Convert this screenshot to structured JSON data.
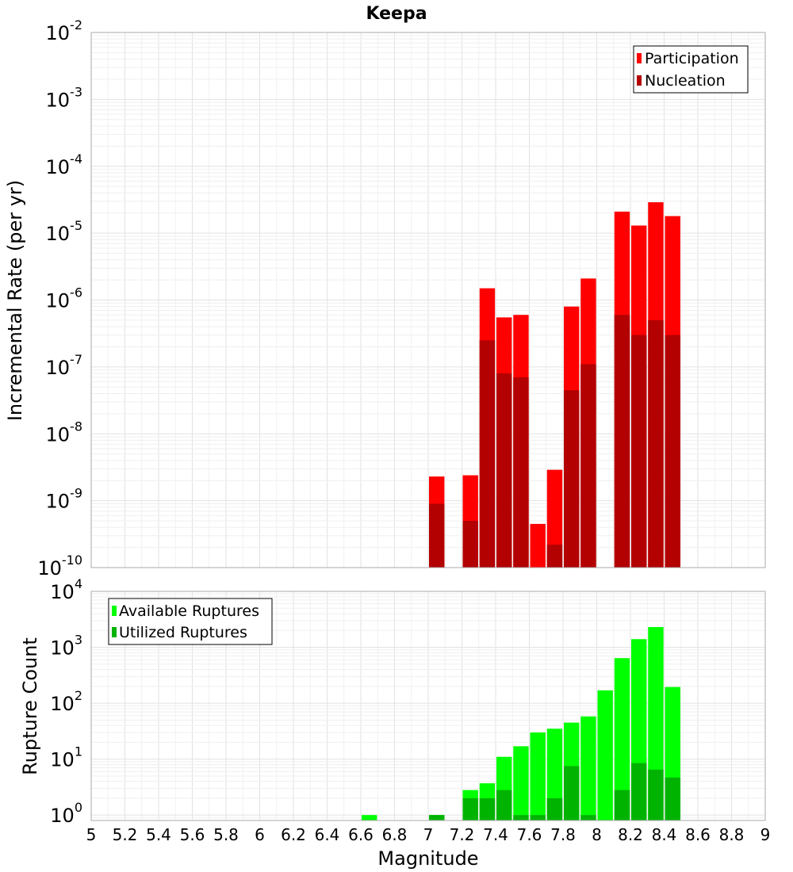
{
  "chart_data": [
    {
      "type": "bar",
      "title": "Keepa",
      "xlabel": "",
      "ylabel": "Incremental Rate (per yr)",
      "yscale": "log",
      "ylim": [
        1e-10,
        0.01
      ],
      "xlim": [
        5,
        9
      ],
      "grid": true,
      "legend_position": "top-right",
      "y_tick_labels": [
        {
          "base": "10",
          "exp": "-10"
        },
        {
          "base": "10",
          "exp": "-9"
        },
        {
          "base": "10",
          "exp": "-8"
        },
        {
          "base": "10",
          "exp": "-7"
        },
        {
          "base": "10",
          "exp": "-6"
        },
        {
          "base": "10",
          "exp": "-5"
        },
        {
          "base": "10",
          "exp": "-4"
        },
        {
          "base": "10",
          "exp": "-3"
        },
        {
          "base": "10",
          "exp": "-2"
        }
      ],
      "series": [
        {
          "name": "Participation",
          "color": "#ff0000",
          "x": [
            7.05,
            7.25,
            7.35,
            7.45,
            7.55,
            7.65,
            7.75,
            7.85,
            7.95,
            8.15,
            8.25,
            8.35,
            8.45
          ],
          "values": [
            2.3e-09,
            2.4e-09,
            1.5e-06,
            5.5e-07,
            6e-07,
            4.5e-10,
            2.9e-09,
            8e-07,
            2.1e-06,
            2.1e-05,
            1.3e-05,
            2.9e-05,
            1.8e-05
          ]
        },
        {
          "name": "Nucleation",
          "color": "#b30000",
          "x": [
            7.05,
            7.25,
            7.35,
            7.45,
            7.55,
            7.65,
            7.75,
            7.85,
            7.95,
            8.15,
            8.25,
            8.35,
            8.45
          ],
          "values": [
            9e-10,
            5e-10,
            2.5e-07,
            8e-08,
            7e-08,
            null,
            2.2e-10,
            4.5e-08,
            1.1e-07,
            6e-07,
            3e-07,
            5e-07,
            3e-07
          ]
        }
      ]
    },
    {
      "type": "bar",
      "title": "",
      "xlabel": "Magnitude",
      "ylabel": "Rupture Count",
      "yscale": "log",
      "ylim": [
        0.8,
        10000
      ],
      "xlim": [
        5,
        9
      ],
      "grid": true,
      "legend_position": "top-left",
      "x_tick_labels": [
        "5",
        "5.2",
        "5.4",
        "5.6",
        "5.8",
        "6",
        "6.2",
        "6.4",
        "6.6",
        "6.8",
        "7",
        "7.2",
        "7.4",
        "7.6",
        "7.8",
        "8",
        "8.2",
        "8.4",
        "8.6",
        "8.8",
        "9"
      ],
      "y_tick_labels": [
        {
          "base": "10",
          "exp": "0"
        },
        {
          "base": "10",
          "exp": "1"
        },
        {
          "base": "10",
          "exp": "2"
        },
        {
          "base": "10",
          "exp": "3"
        },
        {
          "base": "10",
          "exp": "4"
        }
      ],
      "series": [
        {
          "name": "Available Ruptures",
          "color": "#00ff00",
          "x": [
            6.65,
            7.05,
            7.25,
            7.35,
            7.45,
            7.55,
            7.65,
            7.75,
            7.85,
            7.95,
            8.05,
            8.15,
            8.25,
            8.35,
            8.45
          ],
          "values": [
            1,
            1,
            2.8,
            3.7,
            11,
            17,
            30,
            35,
            45,
            58,
            170,
            640,
            1400,
            2300,
            195
          ]
        },
        {
          "name": "Utilized Ruptures",
          "color": "#00b300",
          "x": [
            7.05,
            7.25,
            7.35,
            7.45,
            7.55,
            7.65,
            7.75,
            7.85,
            7.95,
            8.15,
            8.25,
            8.35,
            8.45
          ],
          "values": [
            1,
            2,
            2,
            2.8,
            1,
            1,
            2,
            7.5,
            1,
            2.8,
            8.5,
            6.5,
            4.7
          ]
        }
      ]
    }
  ]
}
